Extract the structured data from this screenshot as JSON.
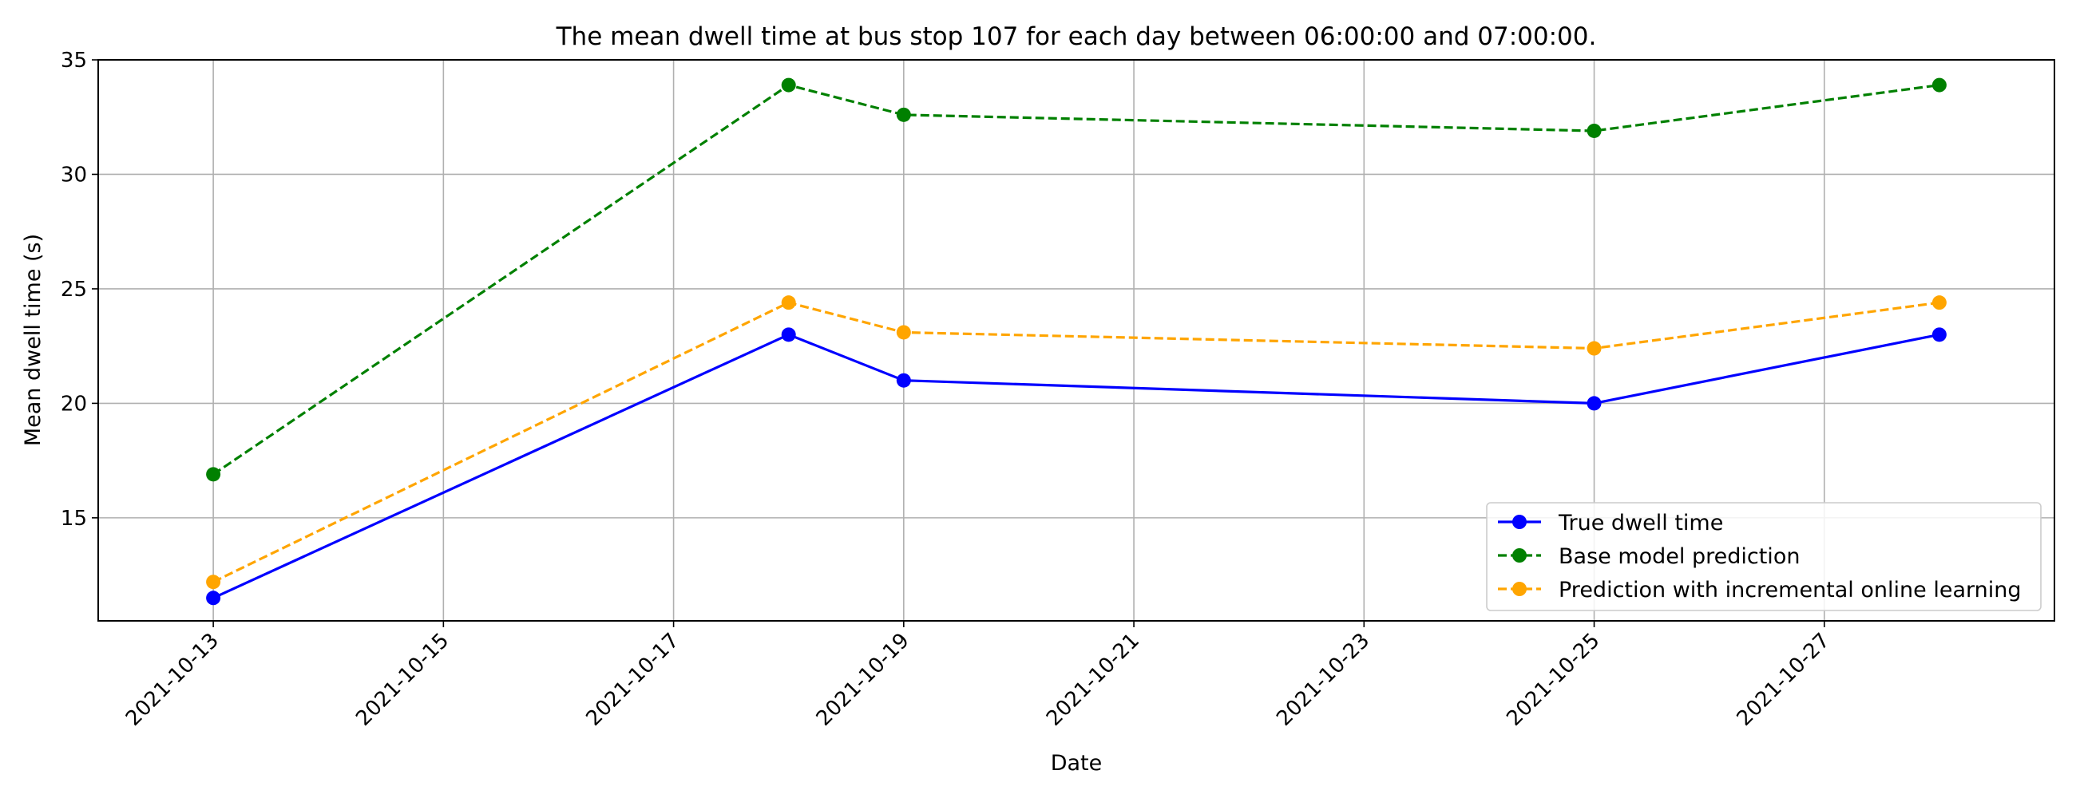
{
  "chart_data": {
    "type": "line",
    "title": "The mean dwell time at bus stop 107 for each day between 06:00:00 and 07:00:00.",
    "xlabel": "Date",
    "ylabel": "Mean dwell time (s)",
    "x_type": "date",
    "xlim": [
      "2021-10-12",
      "2021-10-29"
    ],
    "ylim": [
      10.5,
      35
    ],
    "x": [
      "2021-10-13",
      "2021-10-18",
      "2021-10-19",
      "2021-10-25",
      "2021-10-28"
    ],
    "x_ticks": [
      "2021-10-13",
      "2021-10-15",
      "2021-10-17",
      "2021-10-19",
      "2021-10-21",
      "2021-10-23",
      "2021-10-25",
      "2021-10-27"
    ],
    "y_ticks": [
      15,
      20,
      25,
      30,
      35
    ],
    "grid": true,
    "legend_position": "lower-right",
    "series": [
      {
        "name": "True dwell time",
        "values": [
          11.5,
          23.0,
          21.0,
          20.0,
          23.0
        ],
        "color": "#0000ff",
        "style": "solid",
        "marker": "circle"
      },
      {
        "name": "Base model prediction",
        "values": [
          16.9,
          33.9,
          32.6,
          31.9,
          33.9
        ],
        "color": "#008000",
        "style": "dashed",
        "marker": "circle"
      },
      {
        "name": "Prediction with incremental online learning",
        "values": [
          12.2,
          24.4,
          23.1,
          22.4,
          24.4
        ],
        "color": "#ffa500",
        "style": "dashed",
        "marker": "circle"
      }
    ]
  }
}
